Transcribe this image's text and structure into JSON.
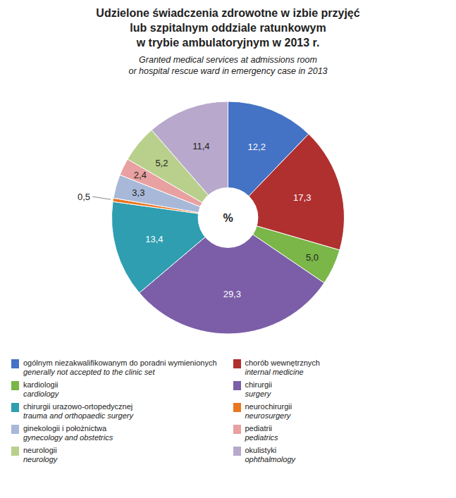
{
  "chart_data": {
    "type": "pie",
    "title": "Udzielone świadczenia zdrowotne w izbie przyjęć\nlub szpitalnym oddziale ratunkowym\nw trybie ambulatoryjnym w 2013 r.",
    "subtitle": "Granted medical services at admissions room\nor hospital rescue ward in emergency case in 2013",
    "center_label": "%",
    "categories": [
      "ogólnym niezakwalifikowanym do poradni wymienionych",
      "chorób wewnętrznych",
      "kardiologii",
      "chirurgii",
      "chirurgii urazowo-ortopedycznej",
      "neurochirurgii",
      "ginekologii i położnictwa",
      "pediatrii",
      "neurologii",
      "okulistyki"
    ],
    "categories_en": [
      "generally not accepted to the clinic set",
      "internal medicine",
      "cardiology",
      "surgery",
      "trauma and orthopaedic surgery",
      "neurosurgery",
      "gynecology and obstetrics",
      "pediatrics",
      "neurology",
      "ophthalmology"
    ],
    "values": [
      12.2,
      17.3,
      5.0,
      29.3,
      13.4,
      0.5,
      3.3,
      2.4,
      5.2,
      11.4
    ],
    "value_labels": [
      "12,2",
      "17,3",
      "5,0",
      "29,3",
      "13,4",
      "0,5",
      "3,3",
      "2,4",
      "5,2",
      "11,4"
    ],
    "colors": [
      "#4472C4",
      "#B03030",
      "#7AB648",
      "#7B5EA7",
      "#2E9EB0",
      "#E87722",
      "#A8B8D8",
      "#E8A0A0",
      "#B8D08C",
      "#B8A8CC"
    ],
    "data_labels": true,
    "legend": "bottom"
  }
}
